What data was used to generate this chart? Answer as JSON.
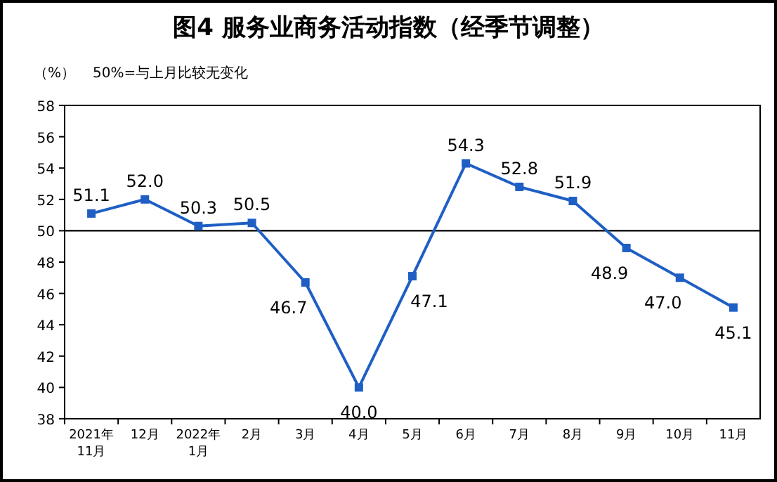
{
  "chart_data": {
    "type": "line",
    "title": "图4  服务业商务活动指数（经季节调整）",
    "ylabel": "（%）",
    "annotations": [
      "50%=与上月比较无变化"
    ],
    "categories": [
      "2021年\n11月",
      "12月",
      "2022年\n1月",
      "2月",
      "3月",
      "4月",
      "5月",
      "6月",
      "7月",
      "8月",
      "9月",
      "10月",
      "11月"
    ],
    "series": [
      {
        "color": "#1f5fc4",
        "values": [
          51.1,
          52.0,
          50.3,
          50.5,
          46.7,
          40.0,
          47.1,
          54.3,
          52.8,
          51.9,
          48.9,
          47.0,
          45.1
        ]
      }
    ],
    "ylim": [
      38,
      58
    ],
    "yticks": [
      38,
      40,
      42,
      44,
      46,
      48,
      50,
      52,
      54,
      56,
      58
    ],
    "ref_lines": [
      {
        "axis": "y",
        "value": 50,
        "color": "#000000"
      }
    ],
    "value_labels": [
      "51.1",
      "52.0",
      "50.3",
      "50.5",
      "46.7",
      "40.0",
      "47.1",
      "54.3",
      "52.8",
      "51.9",
      "48.9",
      "47.0",
      "45.1"
    ],
    "marker": "square",
    "grid": false
  }
}
